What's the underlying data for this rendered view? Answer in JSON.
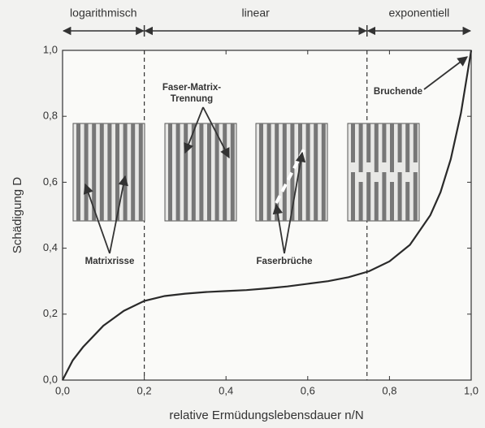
{
  "chart_data": {
    "type": "line",
    "xlabel": "relative Ermüdungslebensdauer n/N",
    "ylabel": "Schädigung D",
    "x": [
      0,
      0.025,
      0.05,
      0.1,
      0.15,
      0.2,
      0.25,
      0.3,
      0.35,
      0.4,
      0.45,
      0.5,
      0.55,
      0.6,
      0.65,
      0.7,
      0.75,
      0.8,
      0.85,
      0.9,
      0.925,
      0.95,
      0.975,
      1.0
    ],
    "values": [
      0,
      0.06,
      0.1,
      0.165,
      0.21,
      0.24,
      0.255,
      0.262,
      0.267,
      0.27,
      0.273,
      0.278,
      0.284,
      0.292,
      0.3,
      0.312,
      0.33,
      0.36,
      0.41,
      0.5,
      0.57,
      0.67,
      0.81,
      1.0
    ],
    "color": "#2a2a2a",
    "xlim": [
      0,
      1
    ],
    "ylim": [
      0,
      1
    ],
    "xticks": [
      {
        "value": 0,
        "label": "0,0"
      },
      {
        "value": 0.2,
        "label": "0,2"
      },
      {
        "value": 0.4,
        "label": "0,4"
      },
      {
        "value": 0.6,
        "label": "0,6"
      },
      {
        "value": 0.8,
        "label": "0,8"
      },
      {
        "value": 1,
        "label": "1,0"
      }
    ],
    "yticks": [
      {
        "value": 0,
        "label": "0,0"
      },
      {
        "value": 0.2,
        "label": "0,2"
      },
      {
        "value": 0.4,
        "label": "0,4"
      },
      {
        "value": 0.6,
        "label": "0,6"
      },
      {
        "value": 0.8,
        "label": "0,8"
      },
      {
        "value": 1,
        "label": "1,0"
      }
    ],
    "phase_boundaries": [
      0.2,
      0.745
    ],
    "phases": [
      "logarithmisch",
      "linear",
      "exponentiell"
    ],
    "annotations": [
      "Matrixrisse",
      "Faser-Matrix-",
      "Trennung",
      "Faserbrüche",
      "Bruchende"
    ]
  }
}
